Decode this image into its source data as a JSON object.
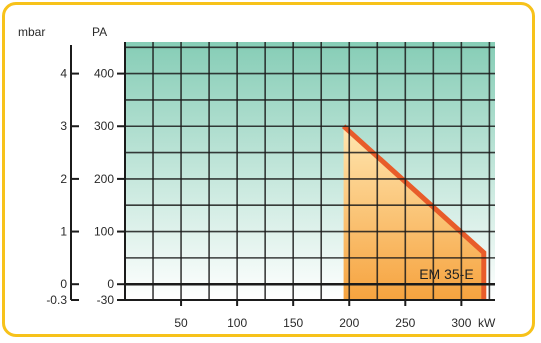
{
  "chart_data": {
    "type": "area",
    "xlabel": "kW",
    "ylabel_left": "mbar",
    "ylabel_right": "PA",
    "x_ticks": [
      50,
      100,
      150,
      200,
      250,
      300
    ],
    "y_ticks_pa": [
      400,
      300,
      200,
      100,
      0,
      -30
    ],
    "y_ticks_pa_labels": [
      "400",
      "300",
      "200",
      "100",
      "0",
      "-30"
    ],
    "y_ticks_mbar": [
      4,
      3,
      2,
      1,
      0,
      -0.3
    ],
    "y_ticks_mbar_labels": [
      "4",
      "3",
      "2",
      "1",
      "0",
      "-0.3"
    ],
    "xlim": [
      0,
      330
    ],
    "ylim": [
      -30,
      460
    ],
    "grid": true,
    "series": [
      {
        "name": "EM 35-E",
        "points": [
          [
            195,
            300
          ],
          [
            320,
            60
          ],
          [
            320,
            -30
          ],
          [
            195,
            -30
          ]
        ]
      }
    ],
    "colors": {
      "frame": "#f7c21a",
      "grid": "#1b1b1b",
      "bg_top": "#86cdb6",
      "bg_bottom": "#ffffff",
      "area_top": "#ffe6b0",
      "area_bottom": "#f6a33f",
      "area_edge": "#e85c2a"
    }
  }
}
